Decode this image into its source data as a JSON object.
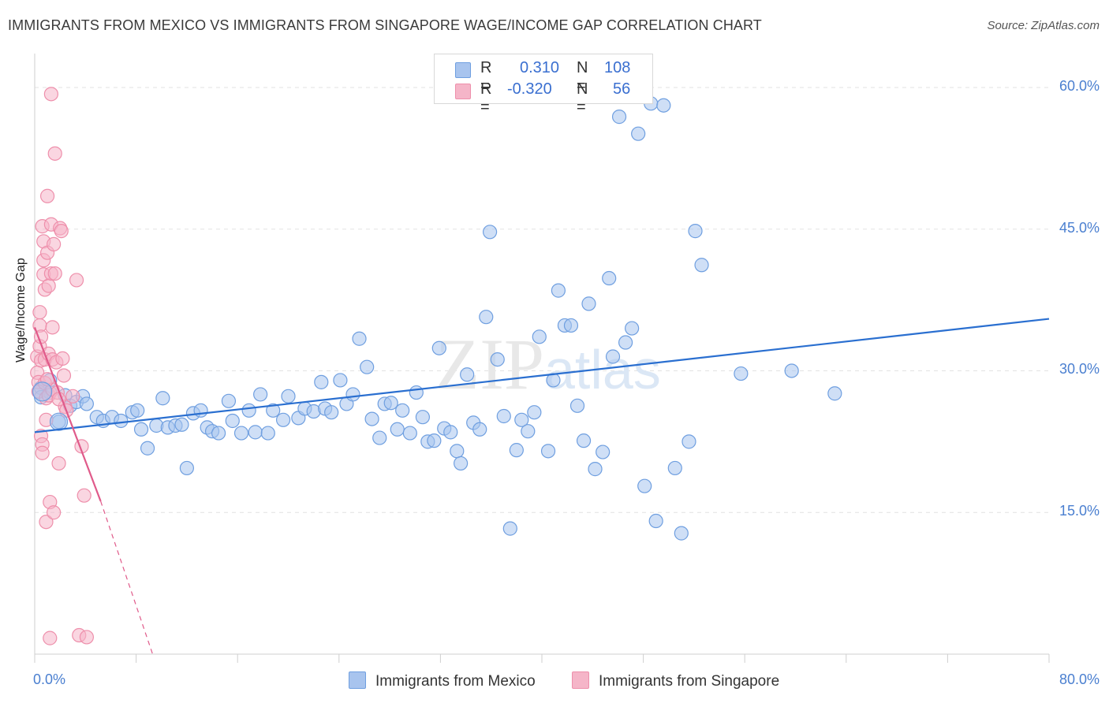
{
  "title": "IMMIGRANTS FROM MEXICO VS IMMIGRANTS FROM SINGAPORE WAGE/INCOME GAP CORRELATION CHART",
  "source": "Source: ZipAtlas.com",
  "watermark": {
    "zip": "ZIP",
    "atlas": "atlas"
  },
  "stats": {
    "rows": [
      {
        "r_label": "R =",
        "r_value": "0.310",
        "n_label": "N =",
        "n_value": "108",
        "color": "#a8c4ee"
      },
      {
        "r_label": "R =",
        "r_value": "-0.320",
        "n_label": "N =",
        "n_value": "56",
        "color": "#f5b5c8"
      }
    ]
  },
  "chart_data": {
    "type": "scatter",
    "title": "IMMIGRANTS FROM MEXICO VS IMMIGRANTS FROM SINGAPORE WAGE/INCOME GAP CORRELATION CHART",
    "xlabel": "",
    "ylabel": "Wage/Income Gap",
    "xlim": [
      0,
      80
    ],
    "ylim": [
      0,
      63
    ],
    "x_tick_labels": [
      "0.0%",
      "80.0%"
    ],
    "y_ticks": [
      15,
      30,
      45,
      60
    ],
    "y_tick_labels": [
      "15.0%",
      "30.0%",
      "45.0%",
      "60.0%"
    ],
    "grid": true,
    "legend_position": "bottom",
    "series": [
      {
        "name": "Immigrants from Mexico",
        "color": "#a8c4ee",
        "stroke": "#6f9fe0",
        "line_color": "#2a6fd0",
        "trend": {
          "x0": 0,
          "y0": 23.5,
          "x1": 80,
          "y1": 35.5
        },
        "points": [
          [
            0.5,
            28.2
          ],
          [
            0.5,
            27.2
          ],
          [
            1.2,
            29.0
          ],
          [
            1.2,
            27.7
          ],
          [
            1.9,
            24.6
          ],
          [
            2.4,
            27.4
          ],
          [
            2.8,
            26.3
          ],
          [
            3.3,
            26.7
          ],
          [
            3.8,
            27.3
          ],
          [
            4.1,
            26.5
          ],
          [
            4.9,
            25.1
          ],
          [
            5.4,
            24.7
          ],
          [
            6.1,
            25.1
          ],
          [
            6.8,
            24.7
          ],
          [
            7.7,
            25.6
          ],
          [
            8.1,
            25.8
          ],
          [
            8.4,
            23.8
          ],
          [
            8.9,
            21.8
          ],
          [
            9.6,
            24.2
          ],
          [
            10.1,
            27.1
          ],
          [
            10.5,
            24.0
          ],
          [
            11.1,
            24.2
          ],
          [
            11.6,
            24.3
          ],
          [
            12.0,
            19.7
          ],
          [
            12.5,
            25.5
          ],
          [
            13.1,
            25.8
          ],
          [
            13.6,
            24.0
          ],
          [
            14.0,
            23.6
          ],
          [
            14.5,
            23.4
          ],
          [
            15.3,
            26.8
          ],
          [
            15.6,
            24.7
          ],
          [
            16.3,
            23.4
          ],
          [
            16.9,
            25.8
          ],
          [
            17.4,
            23.5
          ],
          [
            17.8,
            27.5
          ],
          [
            18.4,
            23.4
          ],
          [
            18.8,
            25.8
          ],
          [
            19.6,
            24.8
          ],
          [
            20.0,
            27.3
          ],
          [
            20.8,
            25.0
          ],
          [
            21.3,
            26.0
          ],
          [
            22.0,
            25.7
          ],
          [
            22.6,
            28.8
          ],
          [
            22.9,
            26.0
          ],
          [
            23.4,
            25.6
          ],
          [
            24.1,
            29.0
          ],
          [
            24.6,
            26.5
          ],
          [
            25.1,
            27.5
          ],
          [
            25.6,
            33.4
          ],
          [
            26.2,
            30.4
          ],
          [
            26.6,
            24.9
          ],
          [
            27.2,
            22.9
          ],
          [
            27.6,
            26.5
          ],
          [
            28.1,
            26.6
          ],
          [
            28.6,
            23.8
          ],
          [
            29.0,
            25.8
          ],
          [
            29.6,
            23.4
          ],
          [
            30.1,
            27.7
          ],
          [
            30.6,
            25.1
          ],
          [
            31.0,
            22.5
          ],
          [
            31.5,
            22.6
          ],
          [
            31.9,
            32.4
          ],
          [
            32.3,
            23.9
          ],
          [
            32.8,
            23.5
          ],
          [
            33.3,
            21.5
          ],
          [
            33.6,
            20.2
          ],
          [
            34.1,
            29.6
          ],
          [
            34.6,
            24.5
          ],
          [
            35.1,
            23.8
          ],
          [
            35.6,
            35.7
          ],
          [
            35.9,
            44.7
          ],
          [
            36.5,
            31.2
          ],
          [
            37.0,
            25.2
          ],
          [
            37.5,
            13.3
          ],
          [
            38.0,
            21.6
          ],
          [
            38.4,
            24.8
          ],
          [
            38.9,
            23.6
          ],
          [
            39.4,
            25.6
          ],
          [
            39.8,
            33.6
          ],
          [
            40.5,
            21.5
          ],
          [
            40.9,
            29.0
          ],
          [
            41.3,
            38.5
          ],
          [
            41.8,
            34.8
          ],
          [
            42.3,
            34.8
          ],
          [
            42.8,
            26.3
          ],
          [
            43.3,
            22.6
          ],
          [
            43.7,
            37.1
          ],
          [
            44.2,
            19.6
          ],
          [
            44.8,
            21.4
          ],
          [
            45.3,
            39.8
          ],
          [
            45.6,
            31.5
          ],
          [
            46.1,
            56.9
          ],
          [
            46.6,
            33.0
          ],
          [
            47.1,
            34.5
          ],
          [
            47.6,
            55.1
          ],
          [
            48.1,
            17.8
          ],
          [
            48.6,
            58.3
          ],
          [
            49.0,
            14.1
          ],
          [
            49.6,
            58.1
          ],
          [
            50.5,
            19.7
          ],
          [
            51.0,
            12.8
          ],
          [
            51.6,
            22.5
          ],
          [
            52.1,
            44.8
          ],
          [
            52.6,
            41.2
          ],
          [
            55.7,
            29.7
          ],
          [
            59.7,
            30.0
          ],
          [
            63.1,
            27.6
          ]
        ]
      },
      {
        "name": "Immigrants from Singapore",
        "color": "#f5b5c8",
        "stroke": "#ee8fab",
        "line_color": "#e05a8a",
        "trend": {
          "x0": 0,
          "y0": 34.6,
          "x1": 5.2,
          "y1": 16.2
        },
        "trend_dashed_to": {
          "x": 9.3,
          "y": 0
        },
        "points": [
          [
            0.2,
            31.5
          ],
          [
            0.2,
            29.8
          ],
          [
            0.3,
            28.8
          ],
          [
            0.3,
            27.8
          ],
          [
            0.4,
            32.6
          ],
          [
            0.4,
            36.2
          ],
          [
            0.4,
            34.8
          ],
          [
            0.5,
            33.6
          ],
          [
            0.5,
            31.1
          ],
          [
            0.5,
            23.1
          ],
          [
            0.6,
            22.2
          ],
          [
            0.6,
            21.3
          ],
          [
            0.6,
            45.3
          ],
          [
            0.7,
            43.7
          ],
          [
            0.7,
            41.7
          ],
          [
            0.7,
            40.2
          ],
          [
            0.8,
            38.6
          ],
          [
            0.8,
            31.2
          ],
          [
            0.8,
            28.7
          ],
          [
            0.9,
            27.1
          ],
          [
            0.9,
            24.8
          ],
          [
            0.9,
            14.0
          ],
          [
            1.0,
            48.5
          ],
          [
            1.0,
            42.5
          ],
          [
            1.1,
            39.0
          ],
          [
            1.1,
            31.8
          ],
          [
            1.1,
            27.4
          ],
          [
            1.2,
            16.1
          ],
          [
            1.2,
            1.7
          ],
          [
            1.3,
            59.3
          ],
          [
            1.3,
            45.5
          ],
          [
            1.3,
            40.3
          ],
          [
            1.4,
            34.6
          ],
          [
            1.4,
            31.2
          ],
          [
            1.4,
            28.0
          ],
          [
            1.5,
            15.0
          ],
          [
            1.5,
            43.4
          ],
          [
            1.6,
            53.0
          ],
          [
            1.6,
            40.3
          ],
          [
            1.7,
            30.9
          ],
          [
            1.8,
            27.7
          ],
          [
            1.9,
            20.2
          ],
          [
            2.0,
            45.1
          ],
          [
            2.1,
            44.8
          ],
          [
            2.2,
            31.3
          ],
          [
            2.3,
            29.5
          ],
          [
            2.4,
            26.2
          ],
          [
            2.5,
            25.8
          ],
          [
            3.0,
            27.3
          ],
          [
            3.3,
            39.6
          ],
          [
            3.5,
            2.0
          ],
          [
            3.7,
            22.0
          ],
          [
            3.9,
            16.8
          ],
          [
            4.1,
            1.8
          ],
          [
            1.9,
            27.0
          ],
          [
            1.0,
            29.1
          ]
        ]
      }
    ]
  },
  "legend": {
    "items": [
      {
        "label": "Immigrants from Mexico",
        "color": "#a8c4ee"
      },
      {
        "label": "Immigrants from Singapore",
        "color": "#f5b5c8"
      }
    ]
  }
}
